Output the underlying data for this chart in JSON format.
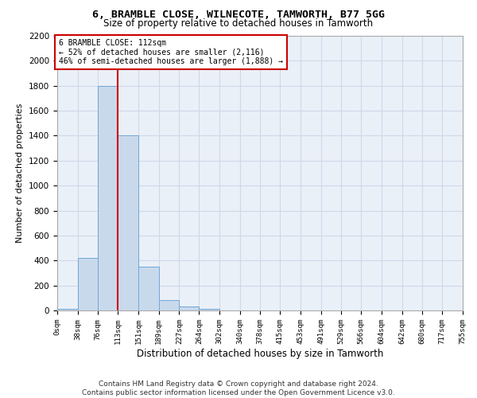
{
  "title_line1": "6, BRAMBLE CLOSE, WILNECOTE, TAMWORTH, B77 5GG",
  "title_line2": "Size of property relative to detached houses in Tamworth",
  "xlabel": "Distribution of detached houses by size in Tamworth",
  "ylabel": "Number of detached properties",
  "bar_edges": [
    0,
    38,
    76,
    113,
    151,
    189,
    227,
    264,
    302,
    340,
    378,
    415,
    453,
    491,
    529,
    566,
    604,
    642,
    680,
    717,
    755
  ],
  "bar_values": [
    15,
    420,
    1800,
    1400,
    350,
    80,
    30,
    15,
    0,
    0,
    0,
    0,
    0,
    0,
    0,
    0,
    0,
    0,
    0,
    0
  ],
  "bar_color": "#c9d9ec",
  "bar_edge_color": "#6fa8d6",
  "grid_color": "#d0d8e8",
  "bg_color": "#eaf0f8",
  "property_line_x": 112,
  "annotation_text": "6 BRAMBLE CLOSE: 112sqm\n← 52% of detached houses are smaller (2,116)\n46% of semi-detached houses are larger (1,888) →",
  "annotation_box_color": "#ffffff",
  "annotation_box_edge_color": "#cc0000",
  "ylim": [
    0,
    2200
  ],
  "yticks": [
    0,
    200,
    400,
    600,
    800,
    1000,
    1200,
    1400,
    1600,
    1800,
    2000,
    2200
  ],
  "tick_labels": [
    "0sqm",
    "38sqm",
    "76sqm",
    "113sqm",
    "151sqm",
    "189sqm",
    "227sqm",
    "264sqm",
    "302sqm",
    "340sqm",
    "378sqm",
    "415sqm",
    "453sqm",
    "491sqm",
    "529sqm",
    "566sqm",
    "604sqm",
    "642sqm",
    "680sqm",
    "717sqm",
    "755sqm"
  ],
  "footer_line1": "Contains HM Land Registry data © Crown copyright and database right 2024.",
  "footer_line2": "Contains public sector information licensed under the Open Government Licence v3.0."
}
